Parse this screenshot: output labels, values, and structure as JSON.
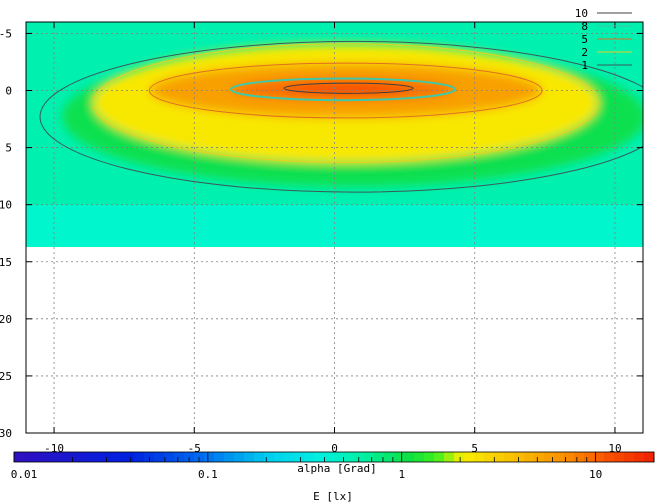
{
  "chart_data": {
    "type": "heatmap",
    "title": "",
    "xlabel": "alpha [Grad]",
    "colorbar_label": "E [lx]",
    "x_range": [
      -11,
      11
    ],
    "y_range": [
      -6,
      30
    ],
    "y_reversed": true,
    "data_y_extent": [
      -6,
      13.7
    ],
    "x_ticks": [
      -10,
      -5,
      0,
      5,
      10
    ],
    "x_tick_labels": [
      "-10",
      "-5",
      "0",
      "5",
      "10"
    ],
    "y_ticks": [
      -5,
      0,
      5,
      10,
      15,
      20,
      25,
      30
    ],
    "y_tick_labels": [
      "-5",
      "0",
      "5",
      "10",
      "15",
      "20",
      "25",
      "30"
    ],
    "grid": true,
    "colorbar": {
      "scale": "log",
      "range": [
        0.01,
        20
      ],
      "ticks": [
        0.01,
        0.1,
        1,
        10
      ],
      "tick_labels": [
        "0.01",
        "0.1",
        "1",
        "10"
      ]
    },
    "contours": [
      {
        "level": 10,
        "label": "10",
        "color": "#404040",
        "center_x": 0.5,
        "center_y": -0.2,
        "half_width": 2.3,
        "half_height": 0.45
      },
      {
        "level": 8,
        "label": "8",
        "color": "#40c8a8",
        "center_x": 0.3,
        "center_y": -0.1,
        "half_width": 4.0,
        "half_height": 0.95
      },
      {
        "level": 5,
        "label": "5",
        "color": "#e07020",
        "center_x": 0.4,
        "center_y": 0.0,
        "half_width": 7.0,
        "half_height": 2.4
      },
      {
        "level": 2,
        "label": "2",
        "color": "#e8d020",
        "center_x": 0.4,
        "center_y": 1.1,
        "half_width": 9.0,
        "half_height": 5.2
      },
      {
        "level": 1,
        "label": "1",
        "color": "#3a5a5a",
        "center_x": 0.7,
        "center_y": 2.3,
        "half_width": 11.2,
        "half_height": 6.6
      }
    ]
  }
}
